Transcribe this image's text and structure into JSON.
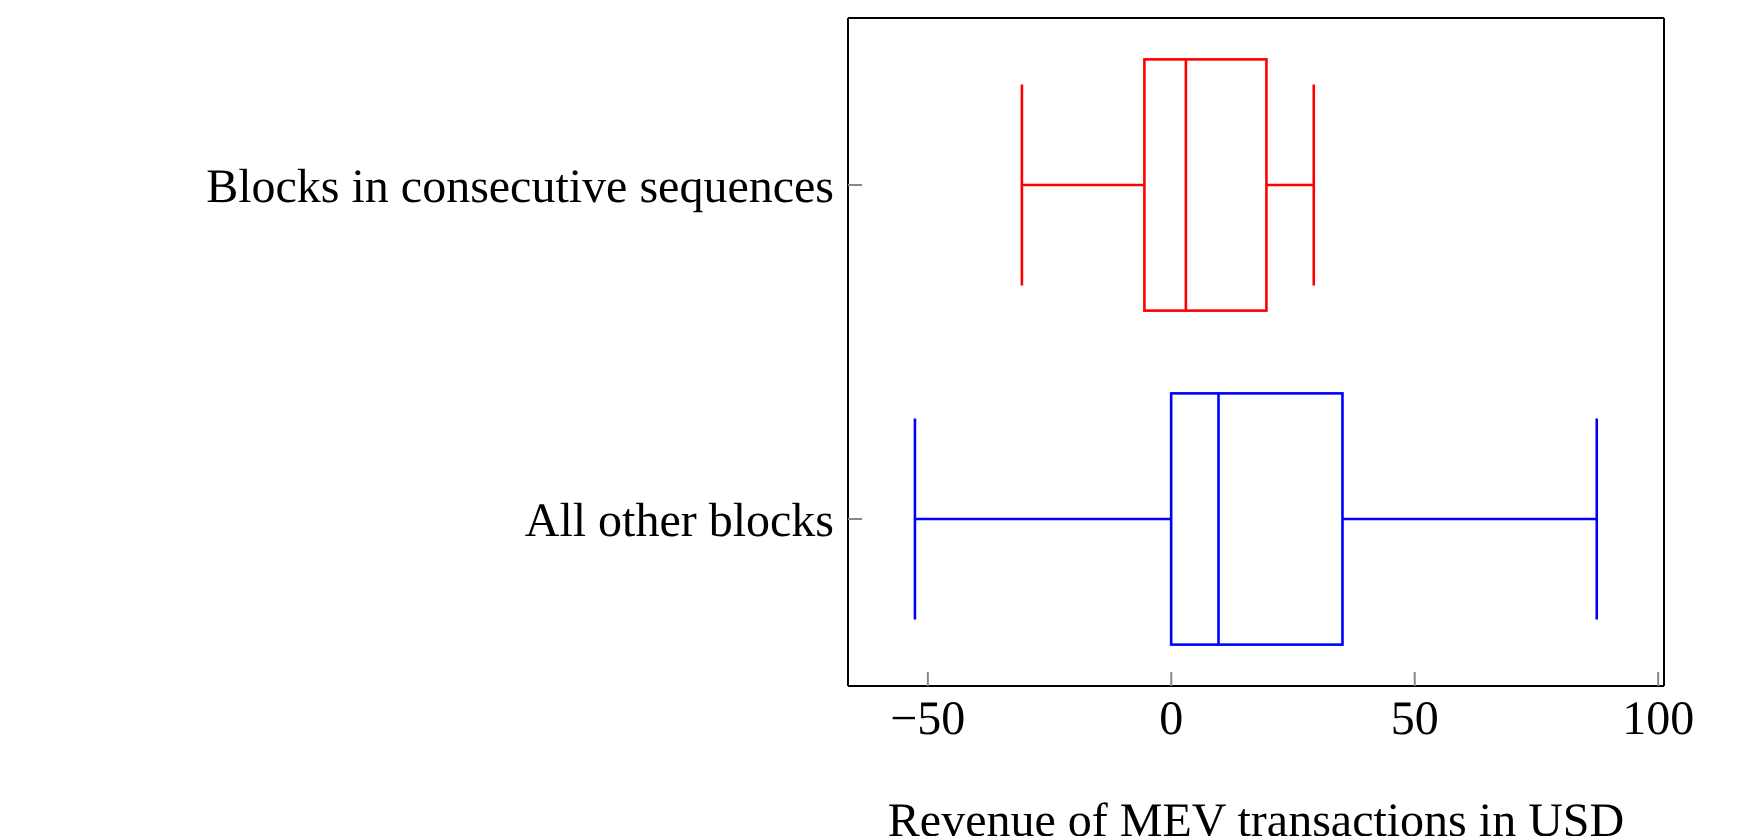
{
  "chart_data": {
    "type": "box",
    "orientation": "horizontal",
    "xlabel": "Revenue of MEV transactions in USD",
    "categories": [
      "Blocks in consecutive sequences",
      "All other blocks"
    ],
    "colors": [
      "#ff0000",
      "#0000ff"
    ],
    "boxes": [
      {
        "low": -30.6,
        "q1": -5.5,
        "median": 3,
        "q3": 19.5,
        "high": 29.2
      },
      {
        "low": -52.5,
        "q1": 0,
        "median": 9.7,
        "q3": 35.1,
        "high": 87.2
      }
    ],
    "xlim": [
      -66.4,
      101.2
    ],
    "xticks": [
      -50,
      0,
      50,
      100
    ]
  }
}
